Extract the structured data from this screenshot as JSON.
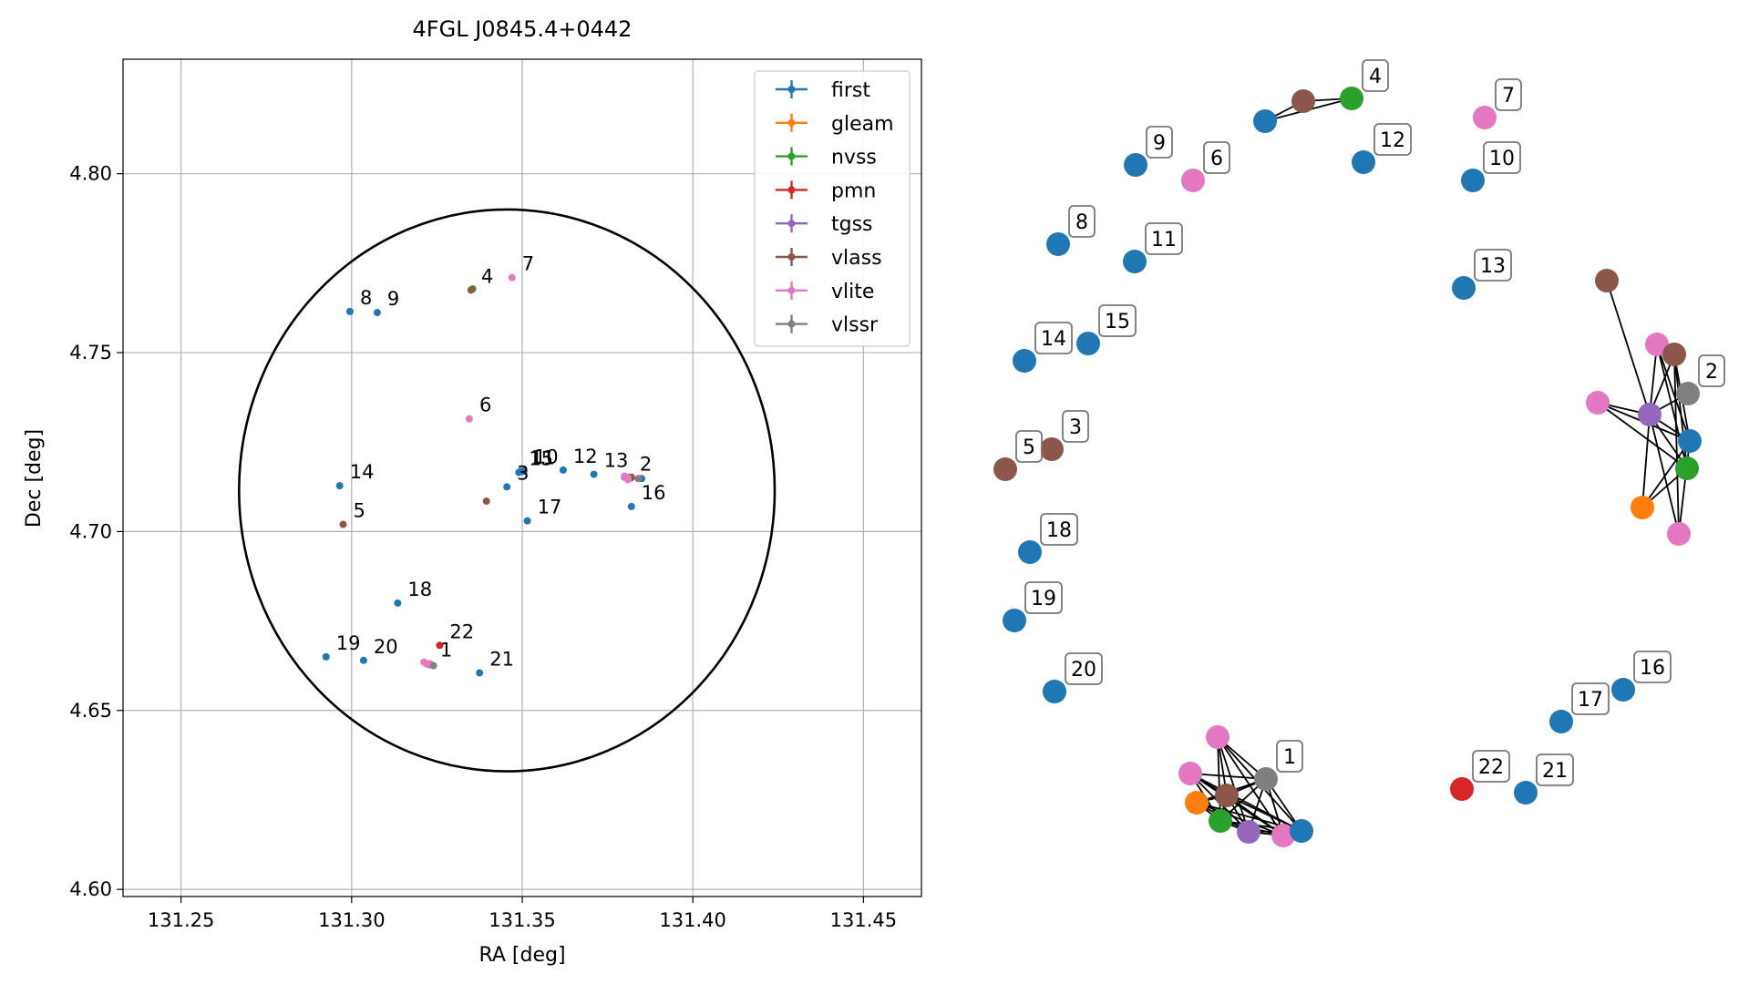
{
  "chart_data": [
    {
      "type": "scatter",
      "title": "4FGL J0845.4+0442",
      "xlabel": "RA [deg]",
      "ylabel": "Dec [deg]",
      "xlim": [
        131.233,
        131.467
      ],
      "ylim": [
        4.598,
        4.832
      ],
      "xticks": [
        131.25,
        131.3,
        131.35,
        131.4,
        131.45
      ],
      "yticks": [
        4.6,
        4.65,
        4.7,
        4.75,
        4.8
      ],
      "xtick_labels": [
        "131.25",
        "131.30",
        "131.35",
        "131.40",
        "131.45"
      ],
      "ytick_labels": [
        "4.60",
        "4.65",
        "4.70",
        "4.75",
        "4.80"
      ],
      "grid": true,
      "legend_placement": "top-right",
      "error_circle": {
        "center": [
          131.3455,
          4.7115
        ],
        "semi_axes": [
          0.0785,
          0.0785
        ]
      },
      "series": [
        {
          "name": "first",
          "color": "#1f77b4",
          "points": [
            [
              131.3225,
              4.663
            ],
            [
              131.385,
              4.7148
            ],
            [
              131.3455,
              4.7125
            ],
            [
              131.362,
              4.7172
            ],
            [
              131.3495,
              4.7168
            ],
            [
              131.2995,
              4.7615
            ],
            [
              131.3075,
              4.7612
            ],
            [
              131.3505,
              4.717
            ],
            [
              131.3505,
              4.7168
            ],
            [
              131.371,
              4.716
            ],
            [
              131.38,
              4.7152
            ],
            [
              131.2965,
              4.7128
            ],
            [
              131.349,
              4.7165
            ],
            [
              131.382,
              4.707
            ],
            [
              131.3515,
              4.703
            ],
            [
              131.3135,
              4.68
            ],
            [
              131.2925,
              4.665
            ],
            [
              131.3035,
              4.664
            ],
            [
              131.3375,
              4.6605
            ]
          ]
        },
        {
          "name": "gleam",
          "color": "#ff7f0e",
          "points": [
            [
              131.3225,
              4.663
            ],
            [
              131.3815,
              4.715
            ]
          ]
        },
        {
          "name": "nvss",
          "color": "#2ca02c",
          "points": [
            [
              131.323,
              4.6628
            ],
            [
              131.3818,
              4.715
            ],
            [
              131.3355,
              4.7678
            ]
          ]
        },
        {
          "name": "pmn",
          "color": "#d62728",
          "points": [
            [
              131.3258,
              4.6682
            ]
          ]
        },
        {
          "name": "tgss",
          "color": "#9467bd",
          "points": [
            [
              131.3228,
              4.6628
            ],
            [
              131.3815,
              4.7152
            ]
          ]
        },
        {
          "name": "vlass",
          "color": "#8c564b",
          "points": [
            [
              131.323,
              4.663
            ],
            [
              131.3818,
              4.715
            ],
            [
              131.382,
              4.7152
            ],
            [
              131.3395,
              4.7085
            ],
            [
              131.335,
              4.7675
            ],
            [
              131.2975,
              4.702
            ]
          ]
        },
        {
          "name": "vlite",
          "color": "#e377c2",
          "points": [
            [
              131.3212,
              4.6635
            ],
            [
              131.3805,
              4.715
            ],
            [
              131.323,
              4.663
            ],
            [
              131.381,
              4.7145
            ],
            [
              131.347,
              4.771
            ],
            [
              131.3345,
              4.7315
            ],
            [
              131.322,
              4.663
            ],
            [
              131.38,
              4.7155
            ],
            [
              131.381,
              4.715
            ]
          ]
        },
        {
          "name": "vlssr",
          "color": "#7f7f7f",
          "points": [
            [
              131.324,
              4.6625
            ],
            [
              131.384,
              4.7148
            ]
          ]
        }
      ],
      "annotations": [
        {
          "text": "1",
          "x": 131.323,
          "y": 4.663
        },
        {
          "text": "2",
          "x": 131.3815,
          "y": 4.715
        },
        {
          "text": "3",
          "x": 131.3455,
          "y": 4.7125
        },
        {
          "text": "4",
          "x": 131.335,
          "y": 4.7675
        },
        {
          "text": "5",
          "x": 131.2975,
          "y": 4.702
        },
        {
          "text": "6",
          "x": 131.3345,
          "y": 4.7315
        },
        {
          "text": "7",
          "x": 131.347,
          "y": 4.771
        },
        {
          "text": "8",
          "x": 131.2995,
          "y": 4.7615
        },
        {
          "text": "9",
          "x": 131.3075,
          "y": 4.7612
        },
        {
          "text": "10",
          "x": 131.3505,
          "y": 4.717
        },
        {
          "text": "11",
          "x": 131.3495,
          "y": 4.7168
        },
        {
          "text": "12",
          "x": 131.362,
          "y": 4.7172
        },
        {
          "text": "13",
          "x": 131.371,
          "y": 4.716
        },
        {
          "text": "14",
          "x": 131.2965,
          "y": 4.7128
        },
        {
          "text": "15",
          "x": 131.349,
          "y": 4.7165
        },
        {
          "text": "16",
          "x": 131.382,
          "y": 4.707
        },
        {
          "text": "17",
          "x": 131.3515,
          "y": 4.703
        },
        {
          "text": "18",
          "x": 131.3135,
          "y": 4.68
        },
        {
          "text": "19",
          "x": 131.2925,
          "y": 4.665
        },
        {
          "text": "20",
          "x": 131.3035,
          "y": 4.664
        },
        {
          "text": "21",
          "x": 131.3375,
          "y": 4.6605
        },
        {
          "text": "22",
          "x": 131.3258,
          "y": 4.6682
        }
      ]
    },
    {
      "type": "network",
      "nodes": [
        {
          "id": "a1",
          "color": "#e377c2"
        },
        {
          "id": "a2",
          "color": "#e377c2"
        },
        {
          "id": "a3",
          "color": "#ff7f0e"
        },
        {
          "id": "a4",
          "color": "#8c564b"
        },
        {
          "id": "a5",
          "color": "#2ca02c"
        },
        {
          "id": "a6",
          "color": "#9467bd"
        },
        {
          "id": "a7",
          "color": "#e377c2"
        },
        {
          "id": "a8",
          "color": "#1f77b4"
        },
        {
          "id": "a9",
          "color": "#7f7f7f",
          "label": "1"
        },
        {
          "id": "b1",
          "color": "#8c564b"
        },
        {
          "id": "b2",
          "color": "#e377c2"
        },
        {
          "id": "b3",
          "color": "#8c564b"
        },
        {
          "id": "b4",
          "color": "#7f7f7f",
          "label": "2"
        },
        {
          "id": "b5",
          "color": "#e377c2"
        },
        {
          "id": "b6",
          "color": "#9467bd"
        },
        {
          "id": "b7",
          "color": "#1f77b4"
        },
        {
          "id": "b8",
          "color": "#2ca02c"
        },
        {
          "id": "b9",
          "color": "#ff7f0e"
        },
        {
          "id": "b10",
          "color": "#e377c2"
        },
        {
          "id": "c1",
          "color": "#1f77b4"
        },
        {
          "id": "c2",
          "color": "#8c564b"
        },
        {
          "id": "c3",
          "color": "#2ca02c",
          "label": "4"
        },
        {
          "id": "n3",
          "color": "#8c564b",
          "label": "3"
        },
        {
          "id": "n5",
          "color": "#8c564b",
          "label": "5"
        },
        {
          "id": "n6",
          "color": "#e377c2",
          "label": "6"
        },
        {
          "id": "n7",
          "color": "#e377c2",
          "label": "7"
        },
        {
          "id": "n8",
          "color": "#1f77b4",
          "label": "8"
        },
        {
          "id": "n9",
          "color": "#1f77b4",
          "label": "9"
        },
        {
          "id": "n10",
          "color": "#1f77b4",
          "label": "10"
        },
        {
          "id": "n11",
          "color": "#1f77b4",
          "label": "11"
        },
        {
          "id": "n12",
          "color": "#1f77b4",
          "label": "12"
        },
        {
          "id": "n13",
          "color": "#1f77b4",
          "label": "13"
        },
        {
          "id": "n14",
          "color": "#1f77b4",
          "label": "14"
        },
        {
          "id": "n15",
          "color": "#1f77b4",
          "label": "15"
        },
        {
          "id": "n16",
          "color": "#1f77b4",
          "label": "16"
        },
        {
          "id": "n17",
          "color": "#1f77b4",
          "label": "17"
        },
        {
          "id": "n18",
          "color": "#1f77b4",
          "label": "18"
        },
        {
          "id": "n19",
          "color": "#1f77b4",
          "label": "19"
        },
        {
          "id": "n20",
          "color": "#1f77b4",
          "label": "20"
        },
        {
          "id": "n21",
          "color": "#1f77b4",
          "label": "21"
        },
        {
          "id": "n22",
          "color": "#d62728",
          "label": "22"
        }
      ],
      "edges": [
        [
          "a1",
          "a4"
        ],
        [
          "a1",
          "a5"
        ],
        [
          "a1",
          "a6"
        ],
        [
          "a1",
          "a7"
        ],
        [
          "a1",
          "a8"
        ],
        [
          "a1",
          "a9"
        ],
        [
          "a2",
          "a4"
        ],
        [
          "a2",
          "a5"
        ],
        [
          "a2",
          "a6"
        ],
        [
          "a2",
          "a7"
        ],
        [
          "a2",
          "a8"
        ],
        [
          "a2",
          "a9"
        ],
        [
          "a3",
          "a4"
        ],
        [
          "a3",
          "a5"
        ],
        [
          "a3",
          "a6"
        ],
        [
          "a3",
          "a7"
        ],
        [
          "a3",
          "a8"
        ],
        [
          "a3",
          "a9"
        ],
        [
          "a4",
          "a5"
        ],
        [
          "a4",
          "a6"
        ],
        [
          "a4",
          "a7"
        ],
        [
          "a4",
          "a8"
        ],
        [
          "a4",
          "a9"
        ],
        [
          "a5",
          "a6"
        ],
        [
          "a5",
          "a7"
        ],
        [
          "a5",
          "a8"
        ],
        [
          "a5",
          "a9"
        ],
        [
          "a6",
          "a7"
        ],
        [
          "a6",
          "a8"
        ],
        [
          "a6",
          "a9"
        ],
        [
          "a7",
          "a8"
        ],
        [
          "a7",
          "a9"
        ],
        [
          "a8",
          "a9"
        ],
        [
          "b1",
          "b6"
        ],
        [
          "b2",
          "b6"
        ],
        [
          "b2",
          "b7"
        ],
        [
          "b3",
          "b6"
        ],
        [
          "b3",
          "b8"
        ],
        [
          "b4",
          "b6"
        ],
        [
          "b5",
          "b6"
        ],
        [
          "b5",
          "b7"
        ],
        [
          "b5",
          "b8"
        ],
        [
          "b6",
          "b7"
        ],
        [
          "b6",
          "b8"
        ],
        [
          "b6",
          "b9"
        ],
        [
          "b6",
          "b10"
        ],
        [
          "b2",
          "b8"
        ],
        [
          "b3",
          "b10"
        ],
        [
          "b9",
          "b7"
        ],
        [
          "b9",
          "b8"
        ],
        [
          "b10",
          "b7"
        ],
        [
          "b3",
          "b7"
        ],
        [
          "c1",
          "c2"
        ],
        [
          "c1",
          "c3"
        ],
        [
          "c2",
          "c3"
        ]
      ]
    }
  ],
  "legend": [
    {
      "label": "first",
      "color": "#1f77b4"
    },
    {
      "label": "gleam",
      "color": "#ff7f0e"
    },
    {
      "label": "nvss",
      "color": "#2ca02c"
    },
    {
      "label": "pmn",
      "color": "#d62728"
    },
    {
      "label": "tgss",
      "color": "#9467bd"
    },
    {
      "label": "vlass",
      "color": "#8c564b"
    },
    {
      "label": "vlite",
      "color": "#e377c2"
    },
    {
      "label": "vlssr",
      "color": "#7f7f7f"
    }
  ]
}
